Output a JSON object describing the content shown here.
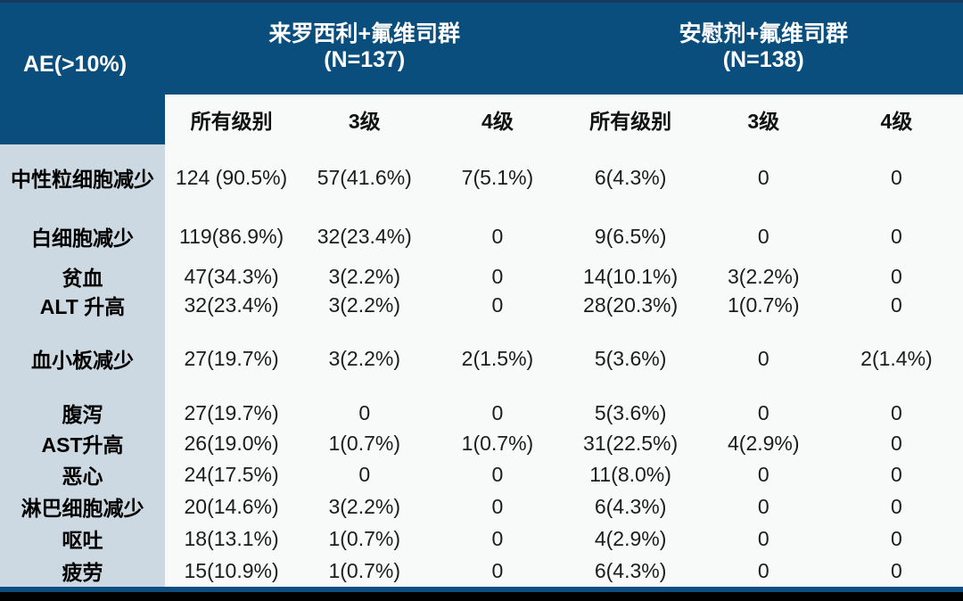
{
  "chart_data": {
    "type": "table",
    "corner_label": "AE(>10%)",
    "column_groups": [
      {
        "title": "来罗西利+氟维司群",
        "n": "(N=137)"
      },
      {
        "title": "安慰剂+氟维司群",
        "n": "(N=138)"
      }
    ],
    "subheaders": [
      "所有级别",
      "3级",
      "4级",
      "所有级别",
      "3级",
      "4级"
    ],
    "rows": [
      {
        "label": "中性粒细胞减少",
        "values": [
          "124 (90.5%)",
          "57(41.6%)",
          "7(5.1%)",
          "6(4.3%)",
          "0",
          "0"
        ]
      },
      {
        "label": "白细胞减少",
        "values": [
          "119(86.9%)",
          "32(23.4%)",
          "0",
          "9(6.5%)",
          "0",
          "0"
        ]
      },
      {
        "label": "贫血",
        "values": [
          "47(34.3%)",
          "3(2.2%)",
          "0",
          "14(10.1%)",
          "3(2.2%)",
          "0"
        ]
      },
      {
        "label": "ALT 升高",
        "values": [
          "32(23.4%)",
          "3(2.2%)",
          "0",
          "28(20.3%)",
          "1(0.7%)",
          "0"
        ]
      },
      {
        "label": "血小板减少",
        "values": [
          "27(19.7%)",
          "3(2.2%)",
          "2(1.5%)",
          "5(3.6%)",
          "0",
          "2(1.4%)"
        ]
      },
      {
        "label": "腹泻",
        "values": [
          "27(19.7%)",
          "0",
          "0",
          "5(3.6%)",
          "0",
          "0"
        ]
      },
      {
        "label": "AST升高",
        "values": [
          "26(19.0%)",
          "1(0.7%)",
          "1(0.7%)",
          "31(22.5%)",
          "4(2.9%)",
          "0"
        ]
      },
      {
        "label": "恶心",
        "values": [
          "24(17.5%)",
          "0",
          "0",
          "11(8.0%)",
          "0",
          "0"
        ]
      },
      {
        "label": "淋巴细胞减少",
        "values": [
          "20(14.6%)",
          "3(2.2%)",
          "0",
          "6(4.3%)",
          "0",
          "0"
        ]
      },
      {
        "label": "呕吐",
        "values": [
          "18(13.1%)",
          "1(0.7%)",
          "0",
          "4(2.9%)",
          "0",
          "0"
        ]
      },
      {
        "label": "疲劳",
        "values": [
          "15(10.9%)",
          "1(0.7%)",
          "0",
          "6(4.3%)",
          "0",
          "0"
        ]
      }
    ],
    "colors": {
      "header_bg": "#094e7d",
      "top_edge": "#16395c",
      "label_column_bg": "#ccd9e2",
      "body_bg": "#f8f9f9",
      "divider_blue": "#0d4e80",
      "bottom_bar": "#000000",
      "header_text": "#ffffff",
      "body_text": "#1c1c1c"
    }
  }
}
